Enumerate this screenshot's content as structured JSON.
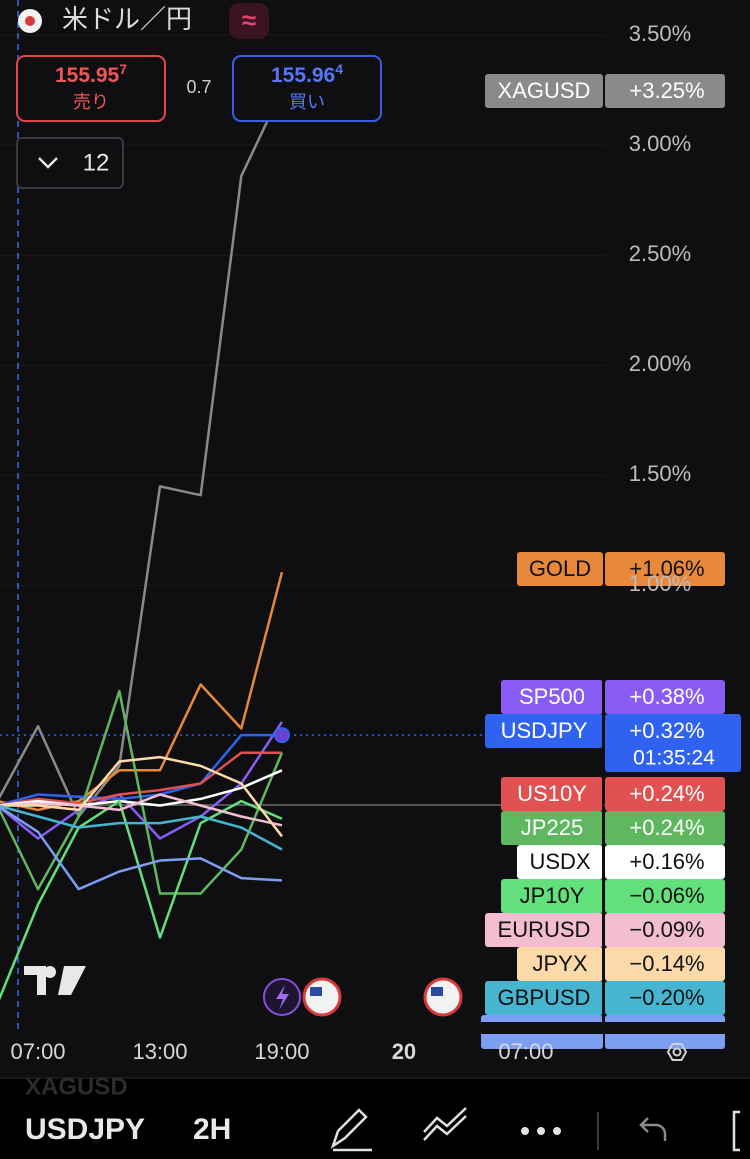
{
  "header": {
    "symbol_name": "米ドル／円",
    "mode_icon": "≈",
    "sell": {
      "price": "155.95",
      "price_last_digit": "7",
      "label": "売り"
    },
    "spread": "0.7",
    "buy": {
      "price": "155.96",
      "price_last_digit": "4",
      "label": "買い"
    },
    "indicator_count": "12"
  },
  "chart_data": {
    "type": "line",
    "x": [
      -2,
      0,
      2,
      4,
      6,
      8,
      10,
      12
    ],
    "xlim": [
      -1.87,
      27.89
    ],
    "xticks": [
      {
        "value": 0,
        "label": "07:00"
      },
      {
        "value": 6,
        "label": "13:00"
      },
      {
        "value": 12,
        "label": "19:00"
      },
      {
        "value": 18,
        "label": "20"
      },
      {
        "value": 24,
        "label": "07:00"
      }
    ],
    "ylim": [
      -1.02,
      3.66
    ],
    "yticks": [
      {
        "value": 1.0,
        "label": "1.00%"
      },
      {
        "value": 1.5,
        "label": "1.50%"
      },
      {
        "value": 2.0,
        "label": "2.00%"
      },
      {
        "value": 2.5,
        "label": "2.50%"
      },
      {
        "value": 3.0,
        "label": "3.00%"
      },
      {
        "value": 3.5,
        "label": "3.50%"
      }
    ],
    "grid": true,
    "countdown": "01:35:24",
    "series": [
      {
        "name": "XAGUSD",
        "color": "#8a8a8a",
        "values": [
          0.02,
          0.36,
          -0.05,
          0.18,
          1.45,
          1.41,
          2.86,
          3.25
        ],
        "value_labels": [
          null,
          null,
          null,
          null,
          null,
          null,
          null,
          "+3.25%"
        ]
      },
      {
        "name": "GOLD",
        "color": "#e8883a",
        "values": [
          0.02,
          -0.02,
          0.02,
          0.16,
          0.16,
          0.55,
          0.35,
          1.06
        ],
        "value_labels": [
          null,
          null,
          null,
          null,
          null,
          null,
          null,
          "+1.06%"
        ]
      },
      {
        "name": "SP500",
        "color": "#8a5cf6",
        "values": [
          0.0,
          -0.15,
          -0.02,
          0.05,
          -0.15,
          -0.05,
          0.1,
          0.38
        ],
        "value_labels": [
          null,
          null,
          null,
          null,
          null,
          null,
          null,
          "+0.38%"
        ]
      },
      {
        "name": "USDJPY",
        "color": "#2f63ef",
        "values": [
          0.0,
          0.05,
          0.04,
          0.03,
          0.05,
          0.1,
          0.32,
          0.32
        ],
        "value_labels": [
          null,
          null,
          null,
          null,
          null,
          null,
          null,
          "+0.32%"
        ]
      },
      {
        "name": "US10Y",
        "color": "#e05252",
        "values": [
          0.0,
          0.03,
          0.01,
          0.05,
          0.07,
          0.1,
          0.24,
          0.24
        ],
        "value_labels": [
          null,
          null,
          null,
          null,
          null,
          null,
          null,
          "+0.24%"
        ]
      },
      {
        "name": "JP225",
        "color": "#5fb85f",
        "values": [
          0.0,
          -0.38,
          -0.05,
          0.52,
          -0.4,
          -0.4,
          -0.2,
          0.24
        ],
        "value_labels": [
          null,
          null,
          null,
          null,
          null,
          null,
          null,
          "+0.24%"
        ]
      },
      {
        "name": "USDX",
        "color": "#ffffff",
        "values": [
          0.0,
          0.02,
          0.0,
          0.02,
          0.0,
          0.03,
          0.08,
          0.16
        ],
        "value_labels": [
          null,
          null,
          null,
          null,
          null,
          null,
          null,
          "+0.16%"
        ]
      },
      {
        "name": "JP10Y",
        "color": "#62e07b",
        "values": [
          -0.9,
          -0.45,
          -0.1,
          0.02,
          -0.6,
          -0.08,
          0.02,
          -0.06
        ],
        "value_labels": [
          null,
          null,
          null,
          null,
          null,
          null,
          null,
          "−0.06%"
        ]
      },
      {
        "name": "EURUSD",
        "color": "#f2bdd0",
        "values": [
          0.0,
          0.01,
          0.0,
          -0.02,
          0.05,
          0.0,
          -0.05,
          -0.09
        ],
        "value_labels": [
          null,
          null,
          null,
          null,
          null,
          null,
          null,
          "−0.09%"
        ]
      },
      {
        "name": "JPYX",
        "color": "#fcd9a8",
        "values": [
          0.0,
          0.0,
          -0.02,
          0.2,
          0.22,
          0.18,
          0.1,
          -0.14
        ],
        "value_labels": [
          null,
          null,
          null,
          null,
          null,
          null,
          null,
          "−0.14%"
        ]
      },
      {
        "name": "GBPUSD",
        "color": "#47b5cf",
        "values": [
          0.0,
          -0.05,
          -0.1,
          -0.08,
          -0.08,
          -0.05,
          -0.1,
          -0.2
        ],
        "value_labels": [
          null,
          null,
          null,
          null,
          null,
          null,
          null,
          "−0.20%"
        ]
      },
      {
        "color": "#7d9ff2",
        "values": [
          0.0,
          -0.12,
          -0.38,
          -0.3,
          -0.25,
          -0.24,
          -0.33,
          -0.34
        ]
      }
    ]
  },
  "footer": {
    "watermark": "XAGUSD",
    "symbol": "USDJPY",
    "interval": "2H"
  }
}
